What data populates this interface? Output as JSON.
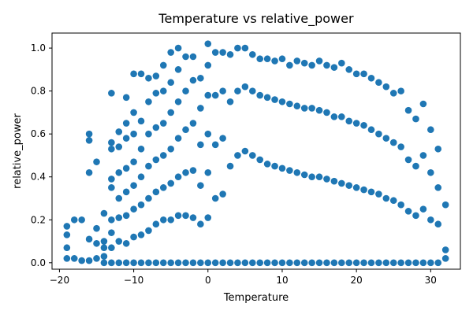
{
  "chart_data": {
    "type": "scatter",
    "title": "Temperature vs relative_power",
    "xlabel": "Temperature",
    "ylabel": "relative_power",
    "xlim": [
      -21,
      34
    ],
    "ylim": [
      -0.03,
      1.07
    ],
    "xticks": [
      -20,
      -10,
      0,
      10,
      20,
      30
    ],
    "yticks": [
      0.0,
      0.2,
      0.4,
      0.6,
      0.8,
      1.0
    ],
    "xtick_labels": [
      "−20",
      "−10",
      "0",
      "10",
      "20",
      "30"
    ],
    "ytick_labels": [
      "0.0",
      "0.2",
      "0.4",
      "0.6",
      "0.8",
      "1.0"
    ],
    "grid": false,
    "marker_color": "#1f77b4",
    "series": [
      {
        "x": [
          -19,
          -19,
          -19,
          -19,
          -18,
          -18,
          -17,
          -17,
          -16,
          -16,
          -16,
          -16,
          -16,
          -15,
          -15,
          -15,
          -15,
          -14,
          -14,
          -14,
          -14,
          -14,
          -13,
          -13,
          -13,
          -13,
          -13,
          -13,
          -13,
          -13,
          -13,
          -12,
          -12,
          -12,
          -12,
          -12,
          -12,
          -12,
          -11,
          -11,
          -11,
          -11,
          -11,
          -11,
          -11,
          -11,
          -10,
          -10,
          -10,
          -10,
          -10,
          -10,
          -10,
          -10,
          -9,
          -9,
          -9,
          -9,
          -9,
          -9,
          -9,
          -8,
          -8,
          -8,
          -8,
          -8,
          -8,
          -8,
          -7,
          -7,
          -7,
          -7,
          -7,
          -7,
          -7,
          -6,
          -6,
          -6,
          -6,
          -6,
          -6,
          -6,
          -5,
          -5,
          -5,
          -5,
          -5,
          -5,
          -5,
          -4,
          -4,
          -4,
          -4,
          -4,
          -4,
          -4,
          -3,
          -3,
          -3,
          -3,
          -3,
          -3,
          -2,
          -2,
          -2,
          -2,
          -2,
          -2,
          -1,
          -1,
          -1,
          -1,
          -1,
          -1,
          0,
          0,
          0,
          0,
          0,
          0,
          0,
          1,
          1,
          1,
          1,
          1,
          2,
          2,
          2,
          2,
          2,
          3,
          3,
          3,
          3,
          4,
          4,
          4,
          4,
          5,
          5,
          5,
          5,
          6,
          6,
          6,
          6,
          7,
          7,
          7,
          7,
          8,
          8,
          8,
          8,
          9,
          9,
          9,
          9,
          10,
          10,
          10,
          10,
          11,
          11,
          11,
          11,
          12,
          12,
          12,
          12,
          13,
          13,
          13,
          13,
          14,
          14,
          14,
          14,
          15,
          15,
          15,
          15,
          16,
          16,
          16,
          16,
          17,
          17,
          17,
          17,
          18,
          18,
          18,
          18,
          19,
          19,
          19,
          19,
          20,
          20,
          20,
          20,
          21,
          21,
          21,
          21,
          22,
          22,
          22,
          22,
          23,
          23,
          23,
          23,
          24,
          24,
          24,
          24,
          25,
          25,
          25,
          25,
          26,
          26,
          26,
          26,
          27,
          27,
          27,
          27,
          28,
          28,
          28,
          28,
          29,
          29,
          29,
          29,
          30,
          30,
          30,
          30,
          31,
          31,
          31,
          31,
          32,
          32,
          32
        ],
        "y": [
          0.17,
          0.13,
          0.07,
          0.02,
          0.2,
          0.02,
          0.2,
          0.01,
          0.6,
          0.57,
          0.42,
          0.11,
          0.01,
          0.47,
          0.16,
          0.09,
          0.02,
          0.23,
          0.1,
          0.07,
          0.03,
          0.0,
          0.79,
          0.56,
          0.53,
          0.39,
          0.35,
          0.2,
          0.14,
          0.07,
          0.0,
          0.61,
          0.54,
          0.42,
          0.3,
          0.21,
          0.1,
          0.0,
          0.77,
          0.65,
          0.58,
          0.44,
          0.33,
          0.22,
          0.09,
          0.0,
          0.88,
          0.7,
          0.6,
          0.47,
          0.36,
          0.25,
          0.12,
          0.0,
          0.88,
          0.66,
          0.53,
          0.4,
          0.27,
          0.13,
          0.0,
          0.86,
          0.75,
          0.6,
          0.45,
          0.3,
          0.15,
          0.0,
          0.87,
          0.79,
          0.63,
          0.48,
          0.33,
          0.18,
          0.0,
          0.92,
          0.8,
          0.65,
          0.5,
          0.35,
          0.2,
          0.0,
          0.98,
          0.84,
          0.7,
          0.53,
          0.37,
          0.2,
          0.0,
          1.0,
          0.9,
          0.75,
          0.58,
          0.4,
          0.22,
          0.0,
          0.96,
          0.8,
          0.62,
          0.42,
          0.22,
          0.0,
          0.96,
          0.85,
          0.65,
          0.43,
          0.21,
          0.0,
          0.86,
          0.72,
          0.55,
          0.36,
          0.18,
          0.0,
          1.02,
          0.92,
          0.78,
          0.6,
          0.42,
          0.21,
          0.0,
          0.98,
          0.78,
          0.55,
          0.3,
          0.0,
          0.98,
          0.8,
          0.58,
          0.32,
          0.0,
          0.97,
          0.75,
          0.45,
          0.0,
          1.0,
          0.8,
          0.5,
          0.0,
          1.0,
          0.82,
          0.52,
          0.0,
          0.97,
          0.8,
          0.5,
          0.0,
          0.95,
          0.78,
          0.48,
          0.0,
          0.95,
          0.77,
          0.46,
          0.0,
          0.94,
          0.76,
          0.45,
          0.0,
          0.95,
          0.75,
          0.44,
          0.0,
          0.92,
          0.74,
          0.43,
          0.0,
          0.94,
          0.73,
          0.42,
          0.0,
          0.93,
          0.72,
          0.41,
          0.0,
          0.92,
          0.72,
          0.4,
          0.0,
          0.94,
          0.71,
          0.4,
          0.0,
          0.92,
          0.7,
          0.39,
          0.0,
          0.91,
          0.68,
          0.38,
          0.0,
          0.93,
          0.68,
          0.37,
          0.0,
          0.9,
          0.66,
          0.36,
          0.0,
          0.88,
          0.65,
          0.35,
          0.0,
          0.88,
          0.64,
          0.34,
          0.0,
          0.86,
          0.62,
          0.33,
          0.0,
          0.84,
          0.6,
          0.32,
          0.0,
          0.82,
          0.58,
          0.3,
          0.0,
          0.79,
          0.56,
          0.29,
          0.0,
          0.8,
          0.54,
          0.27,
          0.0,
          0.71,
          0.48,
          0.24,
          0.0,
          0.67,
          0.45,
          0.22,
          0.0,
          0.74,
          0.5,
          0.25,
          0.0,
          0.62,
          0.42,
          0.2,
          0.0,
          0.53,
          0.35,
          0.18,
          0.0,
          0.27,
          0.06,
          0.02
        ]
      }
    ]
  }
}
